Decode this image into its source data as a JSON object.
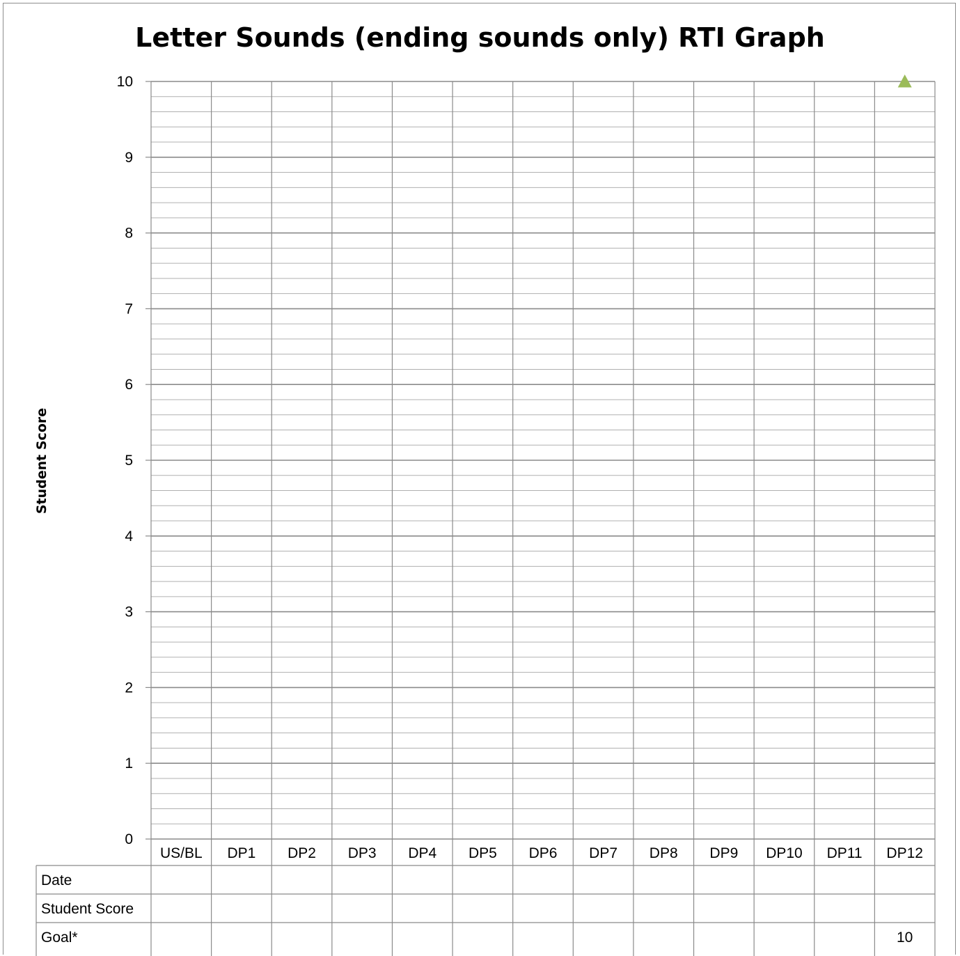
{
  "chart_data": {
    "type": "line",
    "title": "Letter Sounds (ending sounds only) RTI Graph",
    "xlabel": "",
    "ylabel": "Student Score",
    "ylim": [
      0,
      10
    ],
    "yticks": [
      "0",
      "1",
      "2",
      "3",
      "4",
      "5",
      "6",
      "7",
      "8",
      "9",
      "10"
    ],
    "minor_gridlines_per_unit": 5,
    "grid": true,
    "categories": [
      "US/BL",
      "DP1",
      "DP2",
      "DP3",
      "DP4",
      "DP5",
      "DP6",
      "DP7",
      "DP8",
      "DP9",
      "DP10",
      "DP11",
      "DP12"
    ],
    "series": [
      {
        "values": [
          null,
          null,
          null,
          null,
          null,
          null,
          null,
          null,
          null,
          null,
          null,
          null,
          10
        ],
        "color": "#9bbb59",
        "marker": "triangle"
      }
    ],
    "table": {
      "rows": [
        {
          "label": "Date",
          "values": [
            "",
            "",
            "",
            "",
            "",
            "",
            "",
            "",
            "",
            "",
            "",
            "",
            ""
          ]
        },
        {
          "label": "Student Score",
          "values": [
            "",
            "",
            "",
            "",
            "",
            "",
            "",
            "",
            "",
            "",
            "",
            "",
            ""
          ]
        },
        {
          "label": "Goal*",
          "values": [
            "",
            "",
            "",
            "",
            "",
            "",
            "",
            "",
            "",
            "",
            "",
            "",
            "10"
          ]
        }
      ]
    }
  }
}
